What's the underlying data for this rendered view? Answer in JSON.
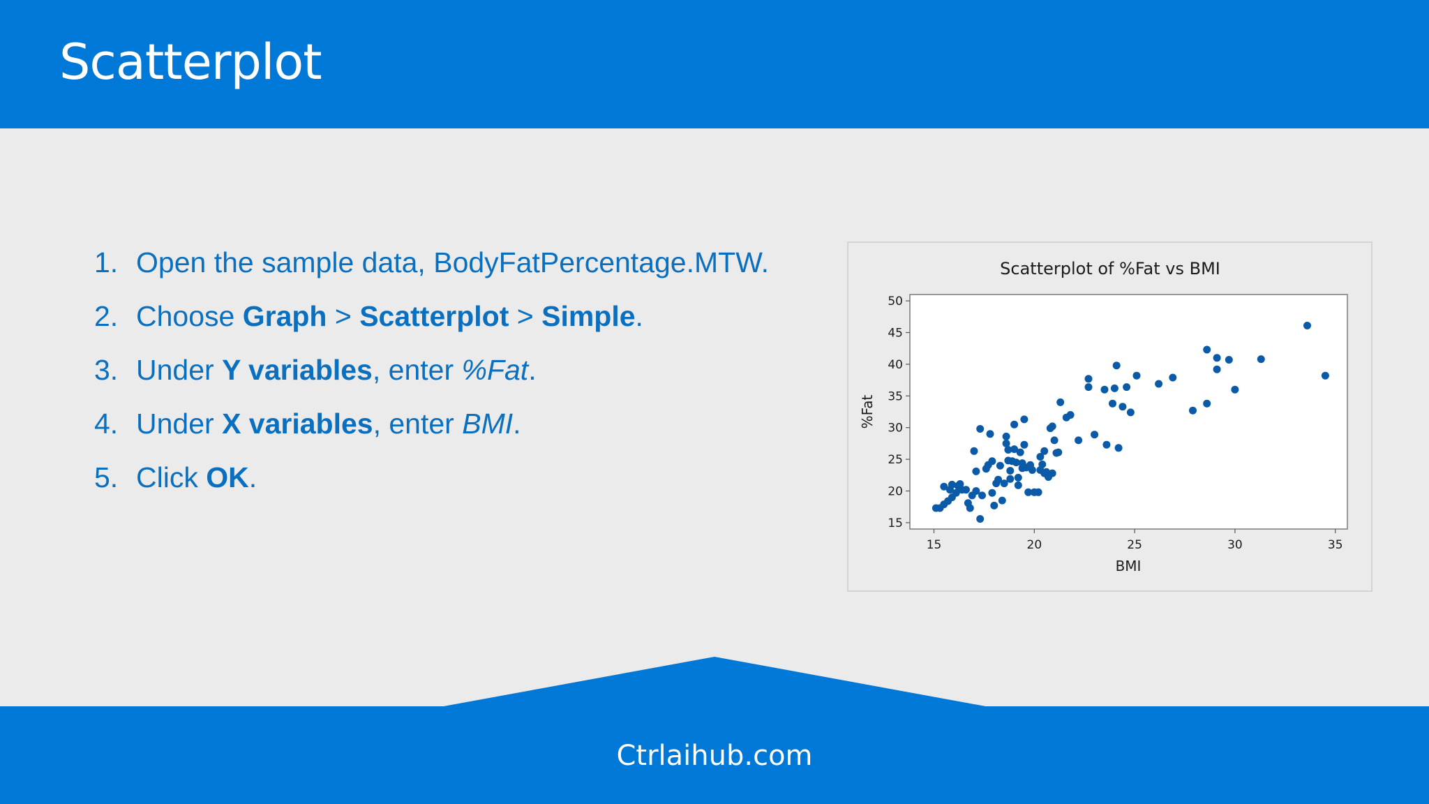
{
  "slide": {
    "title": "Scatterplot",
    "footer": "Ctrlaihub.com",
    "colors": {
      "header": "#0078d7",
      "body_background": "#ebebec",
      "text": "#0b6fbf",
      "point": "#0b5aa8"
    }
  },
  "steps": [
    {
      "num": "1.",
      "parts": [
        {
          "text": "Open the sample data,  BodyFatPercentage.MTW."
        }
      ]
    },
    {
      "num": "2.",
      "parts": [
        {
          "text": "Choose "
        },
        {
          "text": "Graph",
          "style": "bold"
        },
        {
          "text": " > "
        },
        {
          "text": "Scatterplot",
          "style": "bold"
        },
        {
          "text": " > "
        },
        {
          "text": "Simple",
          "style": "bold"
        },
        {
          "text": "."
        }
      ]
    },
    {
      "num": "3.",
      "parts": [
        {
          "text": "Under "
        },
        {
          "text": "Y variables",
          "style": "bold"
        },
        {
          "text": ", enter "
        },
        {
          "text": "%Fat",
          "style": "italic"
        },
        {
          "text": "."
        }
      ]
    },
    {
      "num": "4.",
      "parts": [
        {
          "text": "Under "
        },
        {
          "text": "X variables",
          "style": "bold"
        },
        {
          "text": ", enter "
        },
        {
          "text": "BMI",
          "style": "italic"
        },
        {
          "text": "."
        }
      ]
    },
    {
      "num": "5.",
      "parts": [
        {
          "text": "Click "
        },
        {
          "text": "OK",
          "style": "bold"
        },
        {
          "text": "."
        }
      ]
    }
  ],
  "chart_data": {
    "type": "scatter",
    "title": "Scatterplot of %Fat vs BMI",
    "xlabel": "BMI",
    "ylabel": "%Fat",
    "xlim": [
      13.8,
      35.6
    ],
    "ylim": [
      14,
      51
    ],
    "xticks": [
      15,
      20,
      25,
      30,
      35
    ],
    "yticks": [
      15,
      20,
      25,
      30,
      35,
      40,
      45,
      50
    ],
    "grid": false,
    "points": [
      [
        15.1,
        17.3
      ],
      [
        15.3,
        17.3
      ],
      [
        15.5,
        17.9
      ],
      [
        15.5,
        20.7
      ],
      [
        15.7,
        18.4
      ],
      [
        15.8,
        20.2
      ],
      [
        15.9,
        19.0
      ],
      [
        15.9,
        21.0
      ],
      [
        16.1,
        19.7
      ],
      [
        16.2,
        20.8
      ],
      [
        16.3,
        21.1
      ],
      [
        16.4,
        20.2
      ],
      [
        16.6,
        20.2
      ],
      [
        16.7,
        18.1
      ],
      [
        16.8,
        17.3
      ],
      [
        16.9,
        19.3
      ],
      [
        17.0,
        26.3
      ],
      [
        17.1,
        23.1
      ],
      [
        17.1,
        20.0
      ],
      [
        17.3,
        29.8
      ],
      [
        17.3,
        15.6
      ],
      [
        17.4,
        19.3
      ],
      [
        17.6,
        23.5
      ],
      [
        17.7,
        24.1
      ],
      [
        17.8,
        29.0
      ],
      [
        17.9,
        19.7
      ],
      [
        17.9,
        24.7
      ],
      [
        18.0,
        17.7
      ],
      [
        18.1,
        21.2
      ],
      [
        18.2,
        21.8
      ],
      [
        18.3,
        24.0
      ],
      [
        18.4,
        18.5
      ],
      [
        18.5,
        21.2
      ],
      [
        18.6,
        28.6
      ],
      [
        18.6,
        27.5
      ],
      [
        18.7,
        26.5
      ],
      [
        18.7,
        24.8
      ],
      [
        18.8,
        23.2
      ],
      [
        18.8,
        21.9
      ],
      [
        18.9,
        24.7
      ],
      [
        19.0,
        26.6
      ],
      [
        19.0,
        30.5
      ],
      [
        19.1,
        24.5
      ],
      [
        19.2,
        22.1
      ],
      [
        19.2,
        20.9
      ],
      [
        19.3,
        26.1
      ],
      [
        19.4,
        23.6
      ],
      [
        19.4,
        24.4
      ],
      [
        19.5,
        27.3
      ],
      [
        19.5,
        31.3
      ],
      [
        19.6,
        23.7
      ],
      [
        19.7,
        19.8
      ],
      [
        19.8,
        24.1
      ],
      [
        19.9,
        23.3
      ],
      [
        20.0,
        19.8
      ],
      [
        20.2,
        19.8
      ],
      [
        20.3,
        23.3
      ],
      [
        20.3,
        25.4
      ],
      [
        20.4,
        24.2
      ],
      [
        20.5,
        26.3
      ],
      [
        20.5,
        22.8
      ],
      [
        20.6,
        23.0
      ],
      [
        20.7,
        22.2
      ],
      [
        20.8,
        29.9
      ],
      [
        20.9,
        30.2
      ],
      [
        20.9,
        22.8
      ],
      [
        21.0,
        28.0
      ],
      [
        21.1,
        26.0
      ],
      [
        21.2,
        26.1
      ],
      [
        21.3,
        34.0
      ],
      [
        21.6,
        31.6
      ],
      [
        21.8,
        32.0
      ],
      [
        22.2,
        28.0
      ],
      [
        22.7,
        36.4
      ],
      [
        22.7,
        37.7
      ],
      [
        23.0,
        28.9
      ],
      [
        23.5,
        36.0
      ],
      [
        23.6,
        27.3
      ],
      [
        23.9,
        33.8
      ],
      [
        24.0,
        36.2
      ],
      [
        24.1,
        39.8
      ],
      [
        24.2,
        26.8
      ],
      [
        24.4,
        33.3
      ],
      [
        24.6,
        36.4
      ],
      [
        24.8,
        32.4
      ],
      [
        25.1,
        38.2
      ],
      [
        26.2,
        36.9
      ],
      [
        26.9,
        37.9
      ],
      [
        27.9,
        32.7
      ],
      [
        28.6,
        42.3
      ],
      [
        28.6,
        33.8
      ],
      [
        29.1,
        39.2
      ],
      [
        29.1,
        41.0
      ],
      [
        29.7,
        40.7
      ],
      [
        30.0,
        36.0
      ],
      [
        31.3,
        40.8
      ],
      [
        33.6,
        46.1
      ],
      [
        34.5,
        38.2
      ]
    ]
  }
}
